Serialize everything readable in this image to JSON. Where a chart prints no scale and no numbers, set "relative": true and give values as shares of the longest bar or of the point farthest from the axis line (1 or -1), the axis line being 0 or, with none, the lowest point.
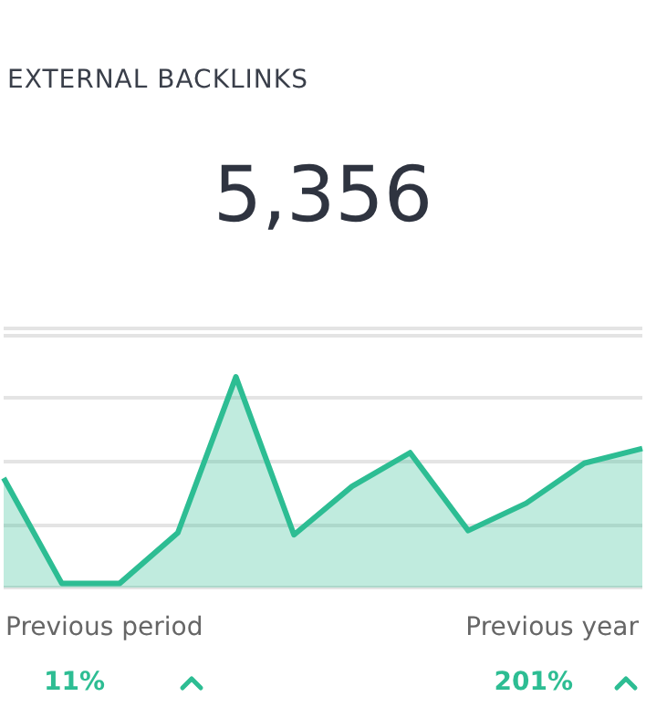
{
  "chart_data": {
    "type": "area",
    "title": "EXTERNAL BACKLINKS",
    "relative": true,
    "grid": "y",
    "categories": [
      null,
      null,
      null,
      null,
      null,
      null,
      null,
      null,
      null,
      null,
      null,
      null
    ],
    "series": [
      {
        "color": "#2dbd93",
        "values": [
          0.52,
          0.02,
          0.02,
          0.26,
          1,
          0.25,
          0.48,
          0.64,
          0.27,
          0.4,
          0.59,
          0.66
        ]
      }
    ],
    "annotations": [
      "5,356",
      "Previous period",
      "11%",
      "Previous year",
      "201%"
    ]
  }
}
